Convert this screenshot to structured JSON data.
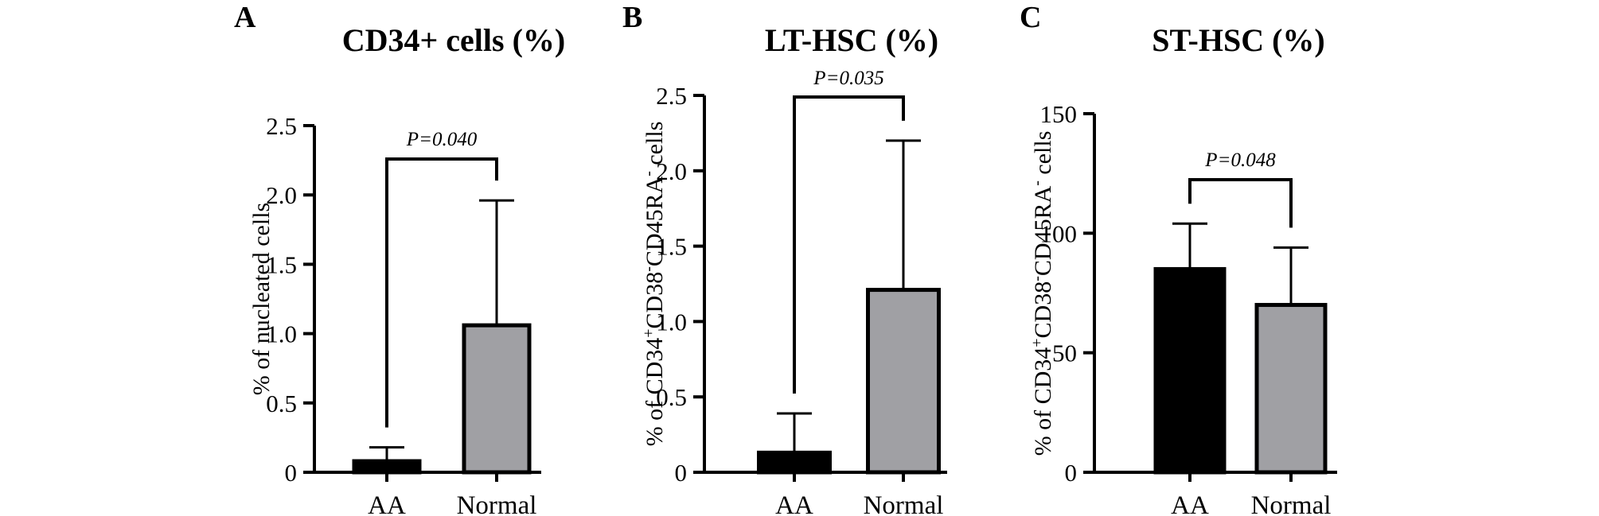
{
  "colors": {
    "AA": "#000000",
    "Normal": "#a0a0a4",
    "axis": "#000000"
  },
  "chart_data": [
    {
      "type": "bar",
      "letter": "A",
      "title": "CD34+ cells (%)",
      "ylabel": {
        "parts": [
          {
            "text": "% of nucleated cells"
          }
        ]
      },
      "categories": [
        "AA",
        "Normal"
      ],
      "values": [
        0.08,
        1.06
      ],
      "errors": [
        0.1,
        0.9
      ],
      "ylim": [
        0,
        2.5
      ],
      "yticks": [
        0,
        0.5,
        1.0,
        1.5,
        2.0,
        2.5
      ],
      "ytick_labels": [
        "0",
        "0.5",
        "1.0",
        "1.5",
        "2.0",
        "2.5"
      ],
      "significance": {
        "text": "P=0.040",
        "between": [
          "AA",
          "Normal"
        ]
      },
      "grid": false,
      "legend": "none"
    },
    {
      "type": "bar",
      "letter": "B",
      "title": "LT-HSC (%)",
      "ylabel": {
        "parts": [
          {
            "text": "% of CD34"
          },
          {
            "text": "+",
            "sup": true
          },
          {
            "text": "CD38"
          },
          {
            "text": "-",
            "sup": true
          },
          {
            "text": "CD45RA"
          },
          {
            "text": "-",
            "sup": true
          },
          {
            "text": " cells"
          }
        ]
      },
      "categories": [
        "AA",
        "Normal"
      ],
      "values": [
        0.13,
        1.21
      ],
      "errors": [
        0.26,
        0.99
      ],
      "ylim": [
        0,
        2.5
      ],
      "yticks": [
        0,
        0.5,
        1.0,
        1.5,
        2.0,
        2.5
      ],
      "ytick_labels": [
        "0",
        "0.5",
        "1.0",
        "1.5",
        "2.0",
        "2.5"
      ],
      "significance": {
        "text": "P=0.035",
        "between": [
          "AA",
          "Normal"
        ]
      },
      "grid": false,
      "legend": "none"
    },
    {
      "type": "bar",
      "letter": "C",
      "title": "ST-HSC (%)",
      "ylabel": {
        "parts": [
          {
            "text": "% of CD34"
          },
          {
            "text": "+",
            "sup": true
          },
          {
            "text": "CD38"
          },
          {
            "text": "-",
            "sup": true
          },
          {
            "text": "CD45RA"
          },
          {
            "text": "-",
            "sup": true
          },
          {
            "text": " cells"
          }
        ]
      },
      "categories": [
        "AA",
        "Normal"
      ],
      "values": [
        85,
        70
      ],
      "errors": [
        19,
        24
      ],
      "ylim": [
        0,
        150
      ],
      "yticks": [
        0,
        50,
        100,
        150
      ],
      "ytick_labels": [
        "0",
        "50",
        "100",
        "150"
      ],
      "significance": {
        "text": "P=0.048",
        "between": [
          "AA",
          "Normal"
        ]
      },
      "grid": false,
      "legend": "none"
    }
  ]
}
